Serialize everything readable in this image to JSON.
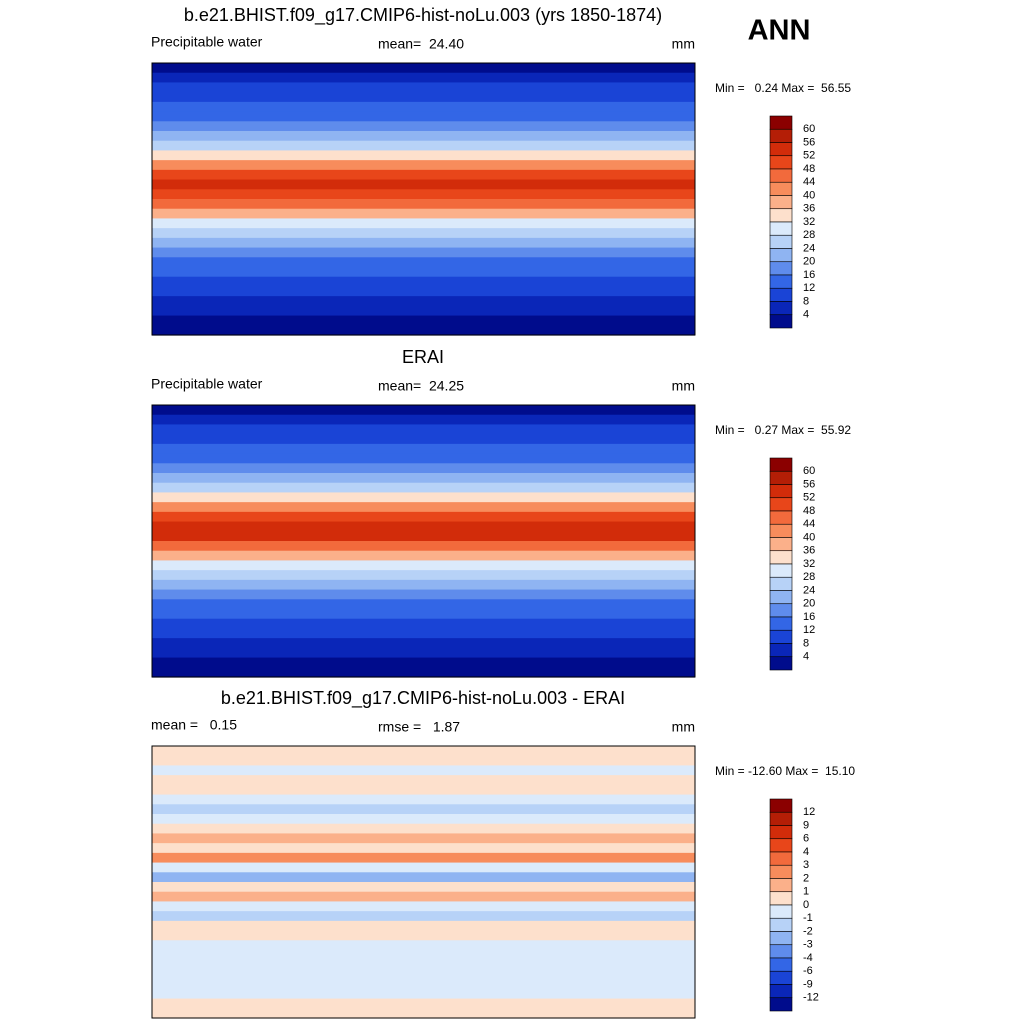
{
  "header": {
    "season": "ANN"
  },
  "panels": [
    {
      "title": "b.e21.BHIST.f09_g17.CMIP6-hist-noLu.003 (yrs 1850-1874)",
      "left": "Precipitable water",
      "center": "mean=  24.40",
      "right": "mm",
      "stats": "Min =   0.24 Max =  56.55",
      "colorbar": {
        "labels": [
          60,
          56,
          52,
          48,
          44,
          40,
          36,
          32,
          28,
          24,
          20,
          16,
          12,
          8,
          4
        ],
        "colors": [
          "#8b0000",
          "#b41e06",
          "#d22c0a",
          "#e8461a",
          "#f26a3c",
          "#f78c5c",
          "#fbb08a",
          "#fde0cc",
          "#dbeafb",
          "#b7d2f7",
          "#8fb4f2",
          "#5f8cec",
          "#3366e6",
          "#1a44d6",
          "#0a26b8",
          "#000c8c"
        ]
      }
    },
    {
      "title": "ERAI",
      "left": "Precipitable water",
      "center": "mean=  24.25",
      "right": "mm",
      "stats": "Min =   0.27 Max =  55.92",
      "colorbar": {
        "labels": [
          60,
          56,
          52,
          48,
          44,
          40,
          36,
          32,
          28,
          24,
          20,
          16,
          12,
          8,
          4
        ],
        "colors": [
          "#8b0000",
          "#b41e06",
          "#d22c0a",
          "#e8461a",
          "#f26a3c",
          "#f78c5c",
          "#fbb08a",
          "#fde0cc",
          "#dbeafb",
          "#b7d2f7",
          "#8fb4f2",
          "#5f8cec",
          "#3366e6",
          "#1a44d6",
          "#0a26b8",
          "#000c8c"
        ]
      }
    },
    {
      "title": "b.e21.BHIST.f09_g17.CMIP6-hist-noLu.003 - ERAI",
      "left": "mean =   0.15",
      "center": "rmse =   1.87",
      "right": "mm",
      "stats": "Min = -12.60 Max =  15.10",
      "colorbar": {
        "labels": [
          12,
          9,
          6,
          4,
          3,
          2,
          1,
          0,
          -1,
          -2,
          -3,
          -4,
          -6,
          -9,
          -12
        ],
        "colors": [
          "#8b0000",
          "#b41e06",
          "#d22c0a",
          "#e8461a",
          "#f26a3c",
          "#f78c5c",
          "#fbb08a",
          "#fde0cc",
          "#dbeafb",
          "#b7d2f7",
          "#8fb4f2",
          "#5f8cec",
          "#3366e6",
          "#1a44d6",
          "#0a26b8",
          "#000c8c"
        ]
      }
    }
  ]
}
